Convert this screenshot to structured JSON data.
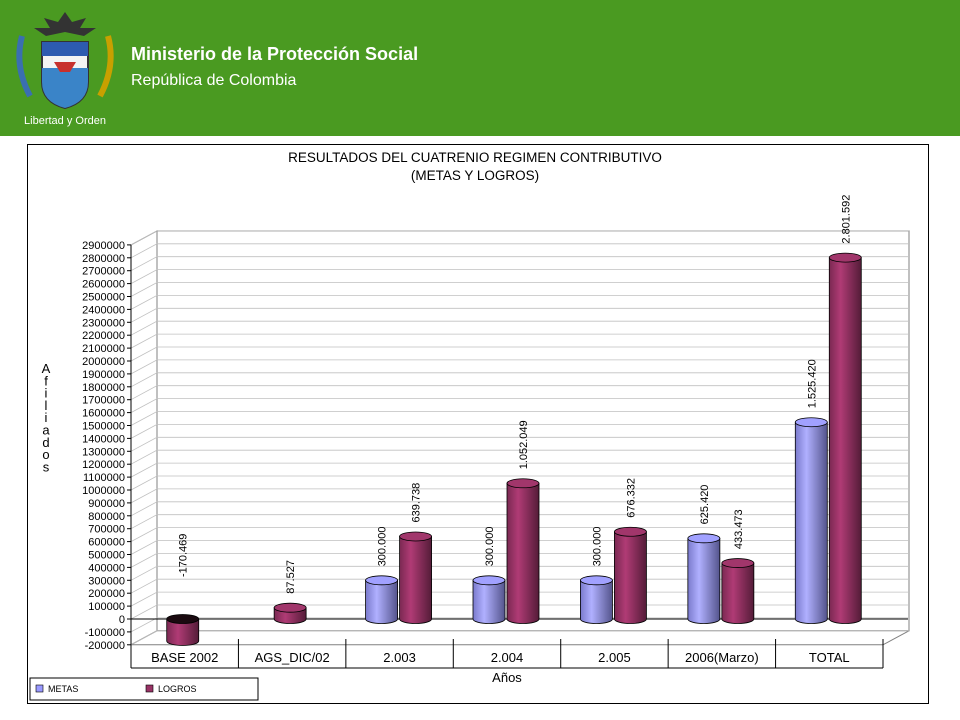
{
  "header": {
    "ministry": "Ministerio de la Protección Social",
    "republic": "República de Colombia",
    "motto": "Libertad y Orden",
    "background_color": "#4a9a21"
  },
  "chart_data": {
    "type": "bar",
    "title_line1": "RESULTADOS DEL CUATRENIO REGIMEN CONTRIBUTIVO",
    "title_line2": "(METAS Y LOGROS)",
    "xlabel": "Años",
    "ylabel": "Afiliados",
    "ylim": [
      -200000,
      2900000
    ],
    "y_tick_step": 100000,
    "categories": [
      "BASE 2002",
      "AGS_DIC/02",
      "2.003",
      "2.004",
      "2.005",
      "2006(Marzo)",
      "TOTAL"
    ],
    "series": [
      {
        "name": "METAS",
        "color": "#9999ff",
        "values": [
          null,
          null,
          300000,
          300000,
          300000,
          625420,
          1525420
        ],
        "labels": [
          "",
          "",
          "300.000",
          "300.000",
          "300.000",
          "625.420",
          "1.525.420"
        ]
      },
      {
        "name": "LOGROS",
        "color": "#993366",
        "values": [
          -170469,
          87527,
          639738,
          1052049,
          676332,
          433473,
          2801592
        ],
        "labels": [
          "-170.469",
          "87.527",
          "639.738",
          "1.052.049",
          "676.332",
          "433.473",
          "2.801.592"
        ]
      }
    ],
    "grid": true,
    "legend_position": "bottom-left"
  }
}
